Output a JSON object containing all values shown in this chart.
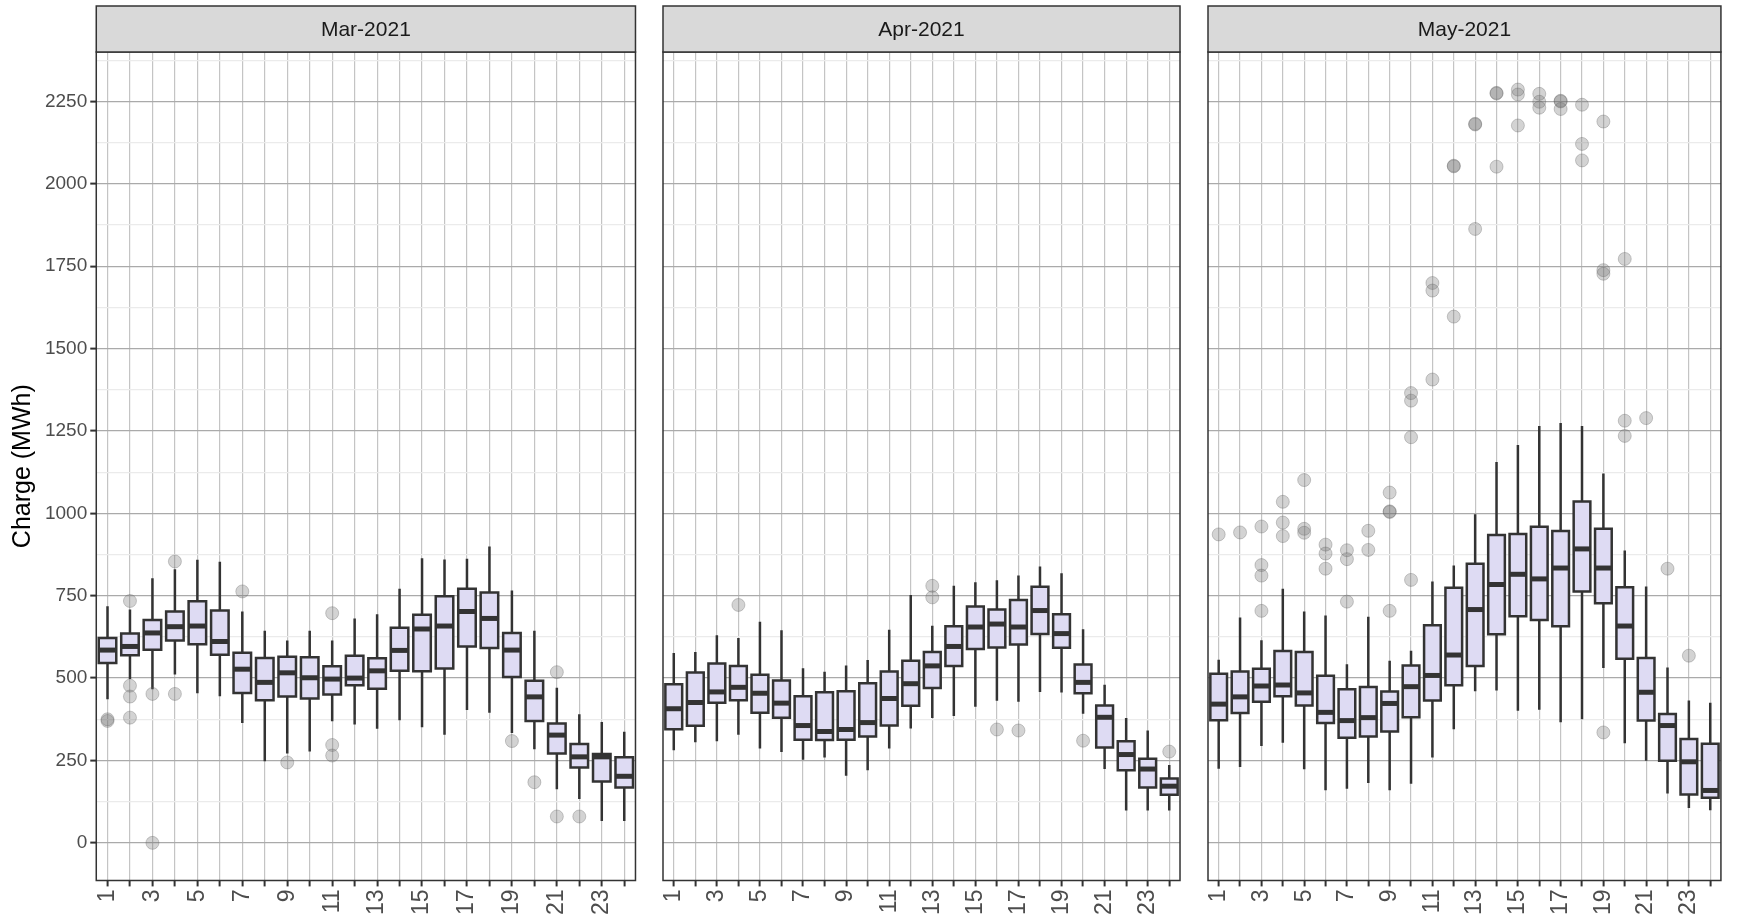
{
  "chart_data": [
    {
      "type": "box",
      "title": "Mar-2021",
      "ylabel": "Charge (MWh)",
      "color": "#dedbf3",
      "grid": true,
      "categories": [
        "1",
        null,
        "3",
        null,
        "5",
        null,
        "7",
        null,
        "9",
        null,
        "11",
        null,
        "13",
        null,
        "15",
        null,
        "17",
        null,
        "19",
        null,
        "21",
        null,
        "23",
        null
      ],
      "ylim": [
        -114,
        2400
      ],
      "yticks": [
        0,
        {
          "value": 125,
          "label": null
        },
        250,
        {
          "value": 375,
          "label": null
        },
        500,
        {
          "value": 625,
          "label": null
        },
        750,
        {
          "value": 875,
          "label": null
        },
        1000,
        {
          "value": 1125,
          "label": null
        },
        1250,
        {
          "value": 1375,
          "label": null
        },
        1500,
        {
          "value": 1625,
          "label": null
        },
        1750,
        {
          "value": 1875,
          "label": null
        },
        2000,
        {
          "value": 2125,
          "label": null
        },
        2250,
        {
          "value": 2375,
          "label": null
        }
      ],
      "boxes": [
        {
          "low": 436,
          "q1": 546,
          "median": 585,
          "q3": 622,
          "high": 718,
          "outliers": [
            370,
            375
          ]
        },
        {
          "low": 497,
          "q1": 569,
          "median": 596,
          "q3": 635,
          "high": 708,
          "outliers": [
            734,
            477,
            444,
            380
          ]
        },
        {
          "low": 466,
          "q1": 586,
          "median": 637,
          "q3": 676,
          "high": 803,
          "outliers": [
            452,
            0
          ]
        },
        {
          "low": 511,
          "q1": 614,
          "median": 656,
          "q3": 702,
          "high": 830,
          "outliers": [
            854,
            452
          ]
        },
        {
          "low": 454,
          "q1": 603,
          "median": 658,
          "q3": 733,
          "high": 859
        },
        {
          "low": 445,
          "q1": 571,
          "median": 611,
          "q3": 705,
          "high": 853
        },
        {
          "low": 364,
          "q1": 455,
          "median": 527,
          "q3": 577,
          "high": 702,
          "outliers": [
            763
          ]
        },
        {
          "low": 248,
          "q1": 433,
          "median": 487,
          "q3": 561,
          "high": 644
        },
        {
          "low": 271,
          "q1": 444,
          "median": 516,
          "q3": 565,
          "high": 614,
          "outliers": [
            244
          ]
        },
        {
          "low": 277,
          "q1": 438,
          "median": 501,
          "q3": 563,
          "high": 644
        },
        {
          "low": 369,
          "q1": 450,
          "median": 497,
          "q3": 536,
          "high": 614,
          "outliers": [
            697,
            297,
            265
          ]
        },
        {
          "low": 359,
          "q1": 478,
          "median": 500,
          "q3": 568,
          "high": 681
        },
        {
          "low": 346,
          "q1": 468,
          "median": 522,
          "q3": 560,
          "high": 694
        },
        {
          "low": 372,
          "q1": 522,
          "median": 584,
          "q3": 653,
          "high": 771
        },
        {
          "low": 351,
          "q1": 521,
          "median": 649,
          "q3": 692,
          "high": 864
        },
        {
          "low": 328,
          "q1": 529,
          "median": 658,
          "q3": 748,
          "high": 860
        },
        {
          "low": 403,
          "q1": 596,
          "median": 702,
          "q3": 771,
          "high": 862
        },
        {
          "low": 395,
          "q1": 591,
          "median": 681,
          "q3": 760,
          "high": 899
        },
        {
          "low": 333,
          "q1": 503,
          "median": 585,
          "q3": 637,
          "high": 766,
          "outliers": [
            309
          ]
        },
        {
          "low": 284,
          "q1": 370,
          "median": 443,
          "q3": 492,
          "high": 644,
          "outliers": [
            184
          ]
        },
        {
          "low": 163,
          "q1": 271,
          "median": 327,
          "q3": 362,
          "high": 471,
          "outliers": [
            518,
            80
          ]
        },
        {
          "low": 133,
          "q1": 229,
          "median": 261,
          "q3": 300,
          "high": 390,
          "outliers": [
            80
          ]
        },
        {
          "low": 66,
          "q1": 186,
          "median": 261,
          "q3": 270,
          "high": 367
        },
        {
          "low": 66,
          "q1": 168,
          "median": 202,
          "q3": 260,
          "high": 337
        }
      ]
    },
    {
      "type": "box",
      "title": "Apr-2021",
      "color": "#dedbf3",
      "grid": true,
      "tick_labels": "x",
      "categories": [
        "1",
        null,
        "3",
        null,
        "5",
        null,
        "7",
        null,
        "9",
        null,
        "11",
        null,
        "13",
        null,
        "15",
        null,
        "17",
        null,
        "19",
        null,
        "21",
        null,
        "23",
        null
      ],
      "ylim": [
        -114,
        2400
      ],
      "yticks": [
        0,
        {
          "value": 125,
          "label": null
        },
        250,
        {
          "value": 375,
          "label": null
        },
        500,
        {
          "value": 625,
          "label": null
        },
        750,
        {
          "value": 875,
          "label": null
        },
        1000,
        {
          "value": 1125,
          "label": null
        },
        1250,
        {
          "value": 1375,
          "label": null
        },
        1500,
        {
          "value": 1625,
          "label": null
        },
        1750,
        {
          "value": 1875,
          "label": null
        },
        2000,
        {
          "value": 2125,
          "label": null
        },
        2250,
        {
          "value": 2375,
          "label": null
        }
      ],
      "boxes": [
        {
          "low": 281,
          "q1": 345,
          "median": 407,
          "q3": 481,
          "high": 576
        },
        {
          "low": 305,
          "q1": 355,
          "median": 426,
          "q3": 517,
          "high": 579
        },
        {
          "low": 308,
          "q1": 425,
          "median": 458,
          "q3": 544,
          "high": 630
        },
        {
          "low": 328,
          "q1": 433,
          "median": 472,
          "q3": 537,
          "high": 622,
          "outliers": [
            722
          ]
        },
        {
          "low": 286,
          "q1": 395,
          "median": 454,
          "q3": 510,
          "high": 671
        },
        {
          "low": 276,
          "q1": 380,
          "median": 424,
          "q3": 493,
          "high": 645
        },
        {
          "low": 252,
          "q1": 313,
          "median": 356,
          "q3": 445,
          "high": 530
        },
        {
          "low": 259,
          "q1": 312,
          "median": 338,
          "q3": 457,
          "high": 519
        },
        {
          "low": 204,
          "q1": 313,
          "median": 344,
          "q3": 460,
          "high": 538
        },
        {
          "low": 220,
          "q1": 323,
          "median": 365,
          "q3": 484,
          "high": 555
        },
        {
          "low": 286,
          "q1": 356,
          "median": 438,
          "q3": 520,
          "high": 647
        },
        {
          "low": 347,
          "q1": 416,
          "median": 483,
          "q3": 553,
          "high": 752
        },
        {
          "low": 379,
          "q1": 470,
          "median": 537,
          "q3": 579,
          "high": 659,
          "outliers": [
            780,
            745
          ]
        },
        {
          "low": 385,
          "q1": 537,
          "median": 596,
          "q3": 657,
          "high": 780
        },
        {
          "low": 413,
          "q1": 588,
          "median": 655,
          "q3": 717,
          "high": 791
        },
        {
          "low": 431,
          "q1": 593,
          "median": 664,
          "q3": 708,
          "high": 797,
          "outliers": [
            344
          ]
        },
        {
          "low": 428,
          "q1": 602,
          "median": 655,
          "q3": 737,
          "high": 811,
          "outliers": [
            341
          ]
        },
        {
          "low": 458,
          "q1": 634,
          "median": 705,
          "q3": 777,
          "high": 839
        },
        {
          "low": 456,
          "q1": 592,
          "median": 635,
          "q3": 694,
          "high": 818
        },
        {
          "low": 392,
          "q1": 454,
          "median": 487,
          "q3": 541,
          "high": 648,
          "outliers": [
            310
          ]
        },
        {
          "low": 224,
          "q1": 289,
          "median": 381,
          "q3": 417,
          "high": 480
        },
        {
          "low": 98,
          "q1": 220,
          "median": 268,
          "q3": 308,
          "high": 379
        },
        {
          "low": 98,
          "q1": 168,
          "median": 224,
          "q3": 255,
          "high": 341
        },
        {
          "low": 98,
          "q1": 146,
          "median": 172,
          "q3": 195,
          "high": 236,
          "outliers": [
            277
          ]
        }
      ]
    },
    {
      "type": "box",
      "title": "May-2021",
      "color": "#dedbf3",
      "grid": true,
      "tick_labels": "x",
      "categories": [
        "1",
        null,
        "3",
        null,
        "5",
        null,
        "7",
        null,
        "9",
        null,
        "11",
        null,
        "13",
        null,
        "15",
        null,
        "17",
        null,
        "19",
        null,
        "21",
        null,
        "23",
        null
      ],
      "ylim": [
        -114,
        2400
      ],
      "yticks": [
        0,
        {
          "value": 125,
          "label": null
        },
        250,
        {
          "value": 375,
          "label": null
        },
        500,
        {
          "value": 625,
          "label": null
        },
        750,
        {
          "value": 875,
          "label": null
        },
        1000,
        {
          "value": 1125,
          "label": null
        },
        1250,
        {
          "value": 1375,
          "label": null
        },
        1500,
        {
          "value": 1625,
          "label": null
        },
        1750,
        {
          "value": 1875,
          "label": null
        },
        2000,
        {
          "value": 2125,
          "label": null
        },
        2250,
        {
          "value": 2375,
          "label": null
        }
      ],
      "boxes": [
        {
          "low": 225,
          "q1": 372,
          "median": 421,
          "q3": 513,
          "high": 556,
          "outliers": [
            936
          ]
        },
        {
          "low": 230,
          "q1": 394,
          "median": 443,
          "q3": 520,
          "high": 684,
          "outliers": [
            942
          ]
        },
        {
          "low": 294,
          "q1": 428,
          "median": 476,
          "q3": 528,
          "high": 615,
          "outliers": [
            960,
            843,
            811,
            704
          ]
        },
        {
          "low": 304,
          "q1": 445,
          "median": 479,
          "q3": 582,
          "high": 771,
          "outliers": [
            1035,
            972,
            931
          ]
        },
        {
          "low": 223,
          "q1": 417,
          "median": 455,
          "q3": 579,
          "high": 702,
          "outliers": [
            1101,
            953,
            941
          ]
        },
        {
          "low": 160,
          "q1": 364,
          "median": 396,
          "q3": 507,
          "high": 690,
          "outliers": [
            905,
            878,
            832
          ]
        },
        {
          "low": 164,
          "q1": 319,
          "median": 371,
          "q3": 466,
          "high": 542,
          "outliers": [
            888,
            861,
            732
          ]
        },
        {
          "low": 182,
          "q1": 323,
          "median": 380,
          "q3": 473,
          "high": 686,
          "outliers": [
            947,
            889
          ]
        },
        {
          "low": 160,
          "q1": 338,
          "median": 423,
          "q3": 459,
          "high": 553,
          "outliers": [
            1063,
            1006,
            1004,
            704
          ]
        },
        {
          "low": 179,
          "q1": 381,
          "median": 474,
          "q3": 538,
          "high": 583,
          "outliers": [
            1365,
            1342,
            1231,
            798
          ]
        },
        {
          "low": 259,
          "q1": 432,
          "median": 508,
          "q3": 660,
          "high": 793,
          "outliers": [
            1699,
            1676,
            1406
          ]
        },
        {
          "low": 345,
          "q1": 478,
          "median": 570,
          "q3": 774,
          "high": 842,
          "outliers": [
            2055,
            2053,
            1597
          ]
        },
        {
          "low": 460,
          "q1": 537,
          "median": 708,
          "q3": 847,
          "high": 997,
          "outliers": [
            2182,
            2180,
            1863
          ]
        },
        {
          "low": 462,
          "q1": 633,
          "median": 784,
          "q3": 934,
          "high": 1156,
          "outliers": [
            2276,
            2274,
            2052
          ]
        },
        {
          "low": 401,
          "q1": 688,
          "median": 815,
          "q3": 937,
          "high": 1207,
          "outliers": [
            2286,
            2271,
            2177
          ]
        },
        {
          "low": 404,
          "q1": 676,
          "median": 801,
          "q3": 959,
          "high": 1265,
          "outliers": [
            2273,
            2249,
            2231
          ]
        },
        {
          "low": 366,
          "q1": 657,
          "median": 834,
          "q3": 946,
          "high": 1274,
          "outliers": [
            2252,
            2250,
            2227
          ]
        },
        {
          "low": 375,
          "q1": 763,
          "median": 892,
          "q3": 1036,
          "high": 1265,
          "outliers": [
            2240,
            2121,
            2071
          ]
        },
        {
          "low": 531,
          "q1": 727,
          "median": 834,
          "q3": 953,
          "high": 1121,
          "outliers": [
            2189,
            1738,
            1727,
            335
          ]
        },
        {
          "low": 302,
          "q1": 559,
          "median": 658,
          "q3": 776,
          "high": 887,
          "outliers": [
            1772,
            1281,
            1235
          ]
        },
        {
          "low": 249,
          "q1": 371,
          "median": 457,
          "q3": 561,
          "high": 778,
          "outliers": [
            1289
          ]
        },
        {
          "low": 150,
          "q1": 249,
          "median": 356,
          "q3": 391,
          "high": 532,
          "outliers": [
            832
          ]
        },
        {
          "low": 106,
          "q1": 147,
          "median": 246,
          "q3": 315,
          "high": 432,
          "outliers": [
            568
          ]
        },
        {
          "low": 99,
          "q1": 137,
          "median": 159,
          "q3": 301,
          "high": 425
        }
      ]
    }
  ]
}
